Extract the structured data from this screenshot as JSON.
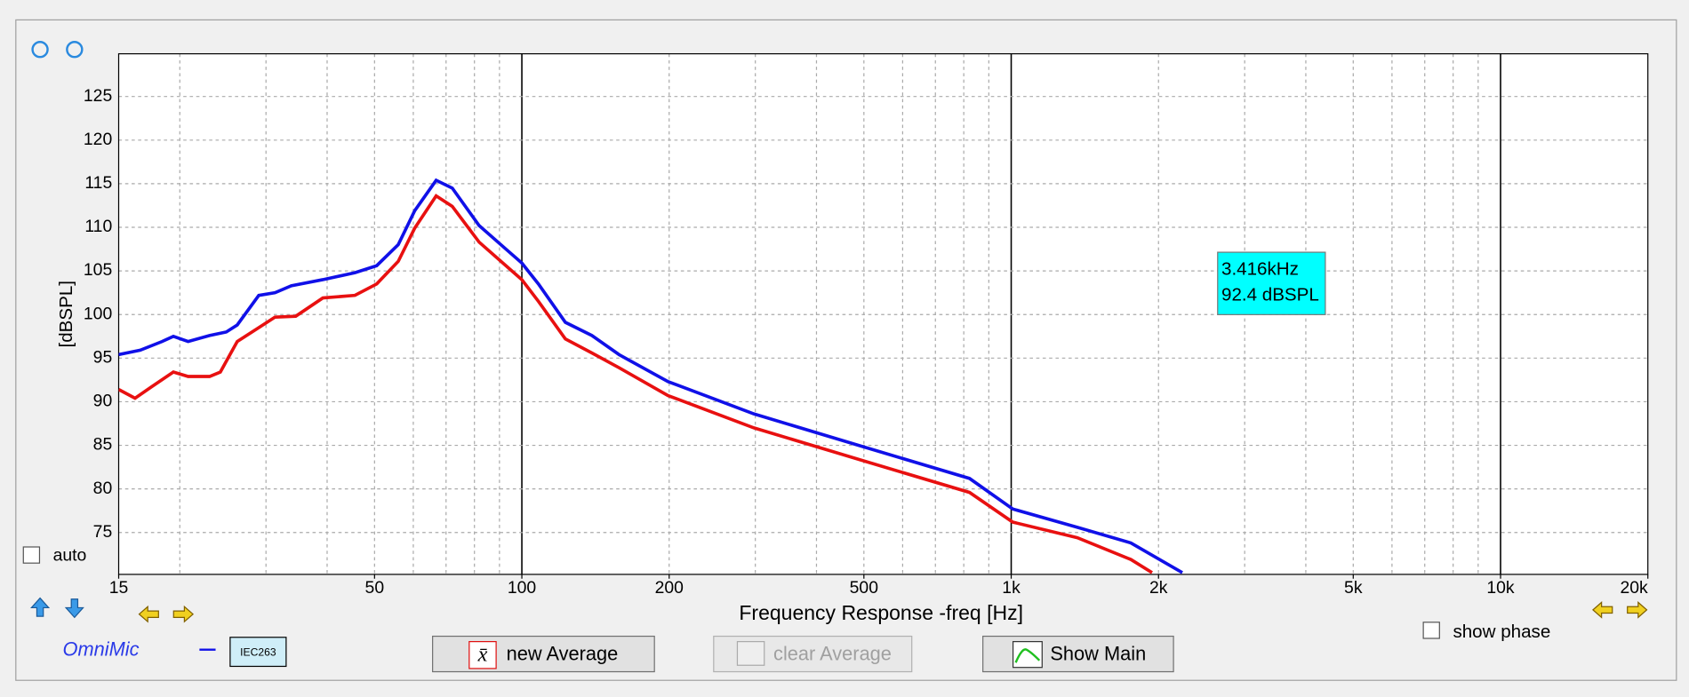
{
  "chart_data": {
    "type": "line",
    "xlabel": "Frequency Response -freq [Hz]",
    "ylabel": "[dBSPL]",
    "xscale": "log",
    "grid": true,
    "xlim": [
      15,
      20000
    ],
    "ylim": [
      70.2,
      129.9
    ],
    "xticks": [
      15,
      50,
      100,
      200,
      500,
      {
        "value": 1000,
        "label": "1k"
      },
      {
        "value": 2000,
        "label": "2k"
      },
      {
        "value": 5000,
        "label": "5k"
      },
      {
        "value": 10000,
        "label": "10k"
      },
      {
        "value": 20000,
        "label": "20k"
      }
    ],
    "yticks": [
      75,
      80,
      85,
      90,
      95,
      100,
      105,
      110,
      115,
      120,
      125
    ],
    "annotation": [
      "3.416kHz",
      "92.4 dBSPL"
    ],
    "series": [
      {
        "color": "#1010e8",
        "x": [
          15,
          16.6,
          18.4,
          19.4,
          20.8,
          23.0,
          24.9,
          26.2,
          29.0,
          31.3,
          33.8,
          39.2,
          45.6,
          50.5,
          55.9,
          60.4,
          66.8,
          72.1,
          81.8,
          92.8,
          100,
          108.1,
          122.7,
          139,
          158,
          199,
          298,
          494,
          822,
          1007,
          1365,
          1757,
          2237
        ],
        "values": [
          95.4,
          95.9,
          96.9,
          97.5,
          96.9,
          97.6,
          98.0,
          98.8,
          102.2,
          102.5,
          103.3,
          104.0,
          104.8,
          105.6,
          108.0,
          111.9,
          115.4,
          114.5,
          110.2,
          107.5,
          105.9,
          103.5,
          99.1,
          97.6,
          95.4,
          92.3,
          88.6,
          84.9,
          81.2,
          77.7,
          75.6,
          73.8,
          70.4
        ]
      },
      {
        "color": "#e81010",
        "x": [
          15,
          16.2,
          17.5,
          19.4,
          20.8,
          23.0,
          24.2,
          26.2,
          29.0,
          31.3,
          34.5,
          39.2,
          45.6,
          50.5,
          55.9,
          60.4,
          66.8,
          72.1,
          81.8,
          92.8,
          100,
          108.1,
          122.7,
          139,
          158,
          199,
          298,
          494,
          822,
          1007,
          1365,
          1757,
          1940
        ],
        "values": [
          91.4,
          90.4,
          91.7,
          93.4,
          92.9,
          92.9,
          93.4,
          96.9,
          98.5,
          99.7,
          99.8,
          101.9,
          102.2,
          103.5,
          106.1,
          109.9,
          113.6,
          112.4,
          108.3,
          105.6,
          104.0,
          101.5,
          97.2,
          95.6,
          93.9,
          90.7,
          87.0,
          83.3,
          79.6,
          76.2,
          74.4,
          71.9,
          70.4
        ]
      }
    ]
  },
  "controls": {
    "auto": "auto",
    "mic": "OmniMic",
    "cal": "IEC263",
    "new_average": "new Average",
    "clear_average": "clear Average",
    "show_main": "Show Main",
    "show_phase": "show phase"
  }
}
